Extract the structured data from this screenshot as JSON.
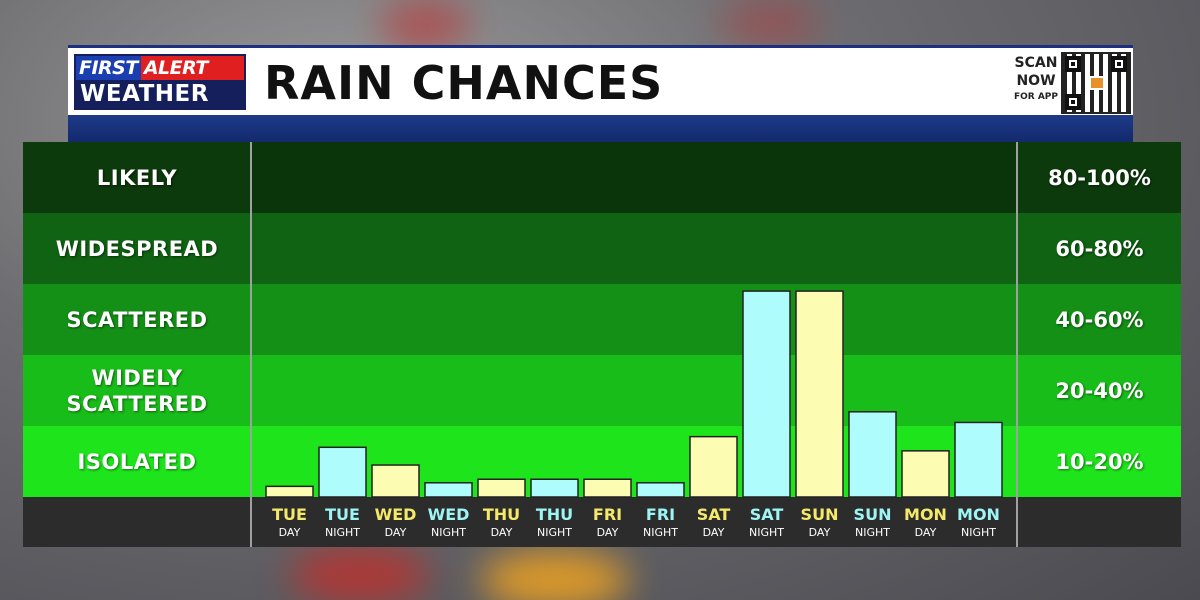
{
  "header": {
    "logo_line1_first": "FIRST",
    "logo_line1_second": "ALERT",
    "logo_line2": "WEATHER",
    "title": "RAIN CHANCES",
    "scan_line1": "SCAN",
    "scan_line2": "NOW",
    "scan_line3": "FOR APP"
  },
  "levels": [
    {
      "name": "LIKELY",
      "range": "80-100%"
    },
    {
      "name": "WIDESPREAD",
      "range": "60-80%"
    },
    {
      "name": "SCATTERED",
      "range": "40-60%"
    },
    {
      "name": "WIDELY SCATTERED",
      "range": "20-40%"
    },
    {
      "name": "ISOLATED",
      "range": "10-20%"
    }
  ],
  "colors": {
    "day_bar": "#fcfcb2",
    "night_bar": "#aefcfc",
    "day_label": "#f5e96a",
    "night_label": "#9ef5f5"
  },
  "chart_data": {
    "type": "bar",
    "title": "RAIN CHANCES",
    "ylim": [
      0,
      100
    ],
    "categories": [
      {
        "day": "TUE",
        "period": "DAY"
      },
      {
        "day": "TUE",
        "period": "NIGHT"
      },
      {
        "day": "WED",
        "period": "DAY"
      },
      {
        "day": "WED",
        "period": "NIGHT"
      },
      {
        "day": "THU",
        "period": "DAY"
      },
      {
        "day": "THU",
        "period": "NIGHT"
      },
      {
        "day": "FRI",
        "period": "DAY"
      },
      {
        "day": "FRI",
        "period": "NIGHT"
      },
      {
        "day": "SAT",
        "period": "DAY"
      },
      {
        "day": "SAT",
        "period": "NIGHT"
      },
      {
        "day": "SUN",
        "period": "DAY"
      },
      {
        "day": "SUN",
        "period": "NIGHT"
      },
      {
        "day": "MON",
        "period": "DAY"
      },
      {
        "day": "MON",
        "period": "NIGHT"
      }
    ],
    "values": [
      3,
      14,
      9,
      4,
      5,
      5,
      5,
      4,
      17,
      58,
      58,
      24,
      13,
      21
    ]
  }
}
